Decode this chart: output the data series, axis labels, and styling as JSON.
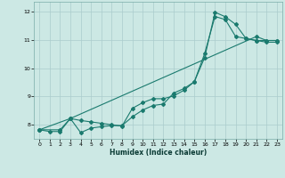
{
  "xlabel": "Humidex (Indice chaleur)",
  "bg_color": "#cce8e4",
  "grid_color": "#aacccc",
  "line_color": "#1a7a6e",
  "xlim": [
    -0.5,
    23.5
  ],
  "ylim": [
    7.5,
    12.35
  ],
  "xticks": [
    0,
    1,
    2,
    3,
    4,
    5,
    6,
    7,
    8,
    9,
    10,
    11,
    12,
    13,
    14,
    15,
    16,
    17,
    18,
    19,
    20,
    21,
    22,
    23
  ],
  "yticks": [
    8,
    9,
    10,
    11,
    12
  ],
  "series1_x": [
    0,
    1,
    2,
    3,
    4,
    5,
    6,
    7,
    8,
    9,
    10,
    11,
    12,
    13,
    14,
    15,
    16,
    17,
    18,
    19,
    20,
    21,
    22,
    23
  ],
  "series1_y": [
    7.82,
    7.76,
    7.76,
    8.22,
    7.72,
    7.88,
    7.93,
    7.97,
    7.97,
    8.28,
    8.52,
    8.68,
    8.73,
    9.12,
    9.28,
    9.52,
    10.52,
    11.83,
    11.72,
    11.12,
    11.05,
    10.98,
    10.98,
    10.98
  ],
  "series2_x": [
    0,
    2,
    3,
    4,
    5,
    6,
    7,
    8,
    9,
    10,
    11,
    12,
    13,
    14,
    15,
    16,
    17,
    18,
    19,
    20,
    21,
    22,
    23
  ],
  "series2_y": [
    7.82,
    7.82,
    8.22,
    8.15,
    8.1,
    8.05,
    8.0,
    7.95,
    8.58,
    8.78,
    8.92,
    8.92,
    9.02,
    9.22,
    9.52,
    10.38,
    11.98,
    11.82,
    11.55,
    11.05,
    10.98,
    10.92,
    10.92
  ],
  "series3_x": [
    0,
    3,
    21,
    22,
    23
  ],
  "series3_y": [
    7.82,
    8.22,
    11.12,
    10.98,
    10.98
  ]
}
